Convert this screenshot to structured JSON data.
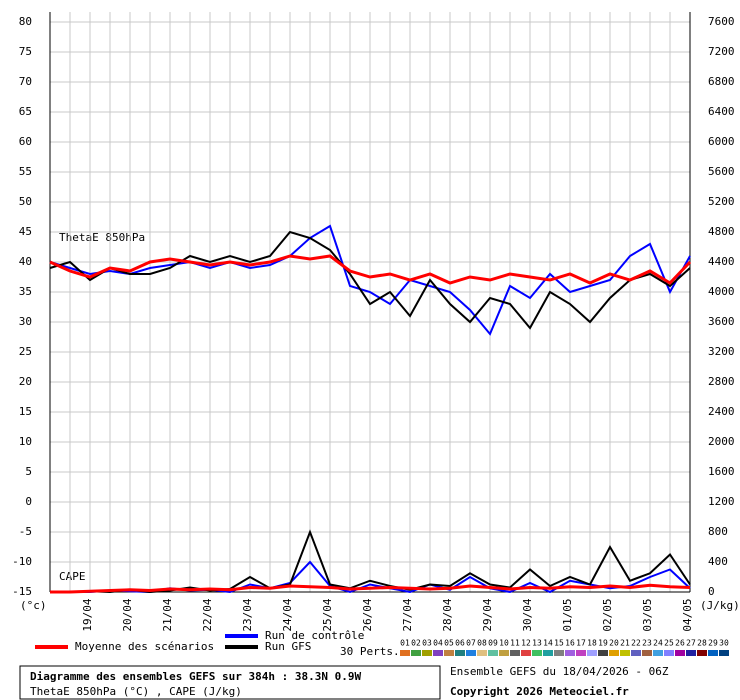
{
  "chart_data": {
    "type": "line",
    "x": [
      0,
      12,
      24,
      36,
      48,
      60,
      72,
      84,
      96,
      108,
      120,
      132,
      144,
      156,
      168,
      180,
      192,
      204,
      216,
      228,
      240,
      252,
      264,
      276,
      288,
      300,
      312,
      324,
      336,
      348,
      360,
      372,
      384
    ],
    "xlim": [
      0,
      384
    ],
    "xticks": [
      {
        "value": 24,
        "label": "19/04"
      },
      {
        "value": 48,
        "label": "20/04"
      },
      {
        "value": 72,
        "label": "21/04"
      },
      {
        "value": 96,
        "label": "22/04"
      },
      {
        "value": 120,
        "label": "23/04"
      },
      {
        "value": 144,
        "label": "24/04"
      },
      {
        "value": 168,
        "label": "25/04"
      },
      {
        "value": 192,
        "label": "26/04"
      },
      {
        "value": 216,
        "label": "27/04"
      },
      {
        "value": 240,
        "label": "28/04"
      },
      {
        "value": 264,
        "label": "29/04"
      },
      {
        "value": 288,
        "label": "30/04"
      },
      {
        "value": 312,
        "label": "01/05"
      },
      {
        "value": 336,
        "label": "02/05"
      },
      {
        "value": 360,
        "label": "03/05"
      },
      {
        "value": 384,
        "label": "04/05"
      }
    ],
    "xminor": [
      12,
      36,
      60,
      84,
      108,
      132,
      156,
      180,
      204,
      228,
      252,
      276,
      300,
      324,
      348,
      372
    ],
    "ylim": [
      -15,
      80
    ],
    "yticks": [
      -15,
      -10,
      -5,
      0,
      5,
      10,
      15,
      20,
      25,
      30,
      35,
      40,
      45,
      50,
      55,
      60,
      65,
      70,
      75,
      80
    ],
    "y2lim": [
      0,
      7600
    ],
    "y2ticks": [
      0,
      400,
      800,
      1200,
      1600,
      2000,
      2400,
      2800,
      3200,
      3600,
      4000,
      4400,
      4800,
      5200,
      5600,
      6000,
      6400,
      6800,
      7200,
      7600
    ],
    "y_unit": "(°c)",
    "y2_unit": "(J/kg)",
    "grid": true,
    "annotations": [
      "ThetaE 850hPa",
      "CAPE"
    ],
    "series": [
      {
        "name": "Run de contrôle",
        "color": "#0000ff",
        "values": [
          40,
          39,
          38,
          38.5,
          38,
          39,
          39.5,
          40,
          39,
          40,
          39,
          39.5,
          41,
          44,
          46,
          36,
          35,
          33,
          37,
          36,
          35,
          32,
          28,
          36,
          34,
          38,
          35,
          36,
          37,
          41,
          43,
          35,
          41
        ]
      },
      {
        "name": "Run GFS",
        "color": "#000000",
        "values": [
          39,
          40,
          37,
          39,
          38,
          38,
          39,
          41,
          40,
          41,
          40,
          41,
          45,
          44,
          42,
          38,
          33,
          35,
          31,
          37,
          33,
          30,
          34,
          33,
          29,
          35,
          33,
          30,
          34,
          37,
          38,
          36,
          39
        ]
      },
      {
        "name": "Moyenne des scénarios",
        "color": "#ff0000",
        "values": [
          40,
          38.5,
          37.5,
          39,
          38.5,
          40,
          40.5,
          40,
          39.5,
          40,
          39.5,
          40,
          41,
          40.5,
          41,
          38.5,
          37.5,
          38,
          37,
          38,
          36.5,
          37.5,
          37,
          38,
          37.5,
          37,
          38,
          36.5,
          38,
          37,
          38.5,
          36.5,
          40
        ]
      }
    ],
    "cape_series": [
      {
        "color": "#0000ff",
        "axis": "y2",
        "values": [
          0,
          0,
          0,
          20,
          10,
          0,
          50,
          20,
          30,
          0,
          100,
          50,
          120,
          400,
          80,
          0,
          100,
          50,
          0,
          100,
          30,
          200,
          50,
          0,
          120,
          0,
          150,
          100,
          50,
          80,
          200,
          300,
          50
        ]
      },
      {
        "color": "#000000",
        "axis": "y2",
        "values": [
          0,
          0,
          10,
          0,
          30,
          0,
          20,
          60,
          20,
          40,
          200,
          50,
          100,
          800,
          100,
          50,
          150,
          80,
          30,
          100,
          80,
          250,
          100,
          60,
          300,
          80,
          200,
          100,
          600,
          150,
          250,
          500,
          100
        ]
      },
      {
        "color": "#ff0000",
        "axis": "y2",
        "values": [
          0,
          0,
          10,
          20,
          30,
          20,
          40,
          30,
          40,
          30,
          60,
          50,
          80,
          70,
          60,
          40,
          50,
          60,
          50,
          40,
          50,
          80,
          60,
          40,
          60,
          50,
          70,
          60,
          80,
          60,
          90,
          70,
          60
        ]
      }
    ],
    "perturbations": {
      "label": "30 Perts.",
      "members": [
        "01",
        "02",
        "03",
        "04",
        "05",
        "06",
        "07",
        "08",
        "09",
        "10",
        "11",
        "12",
        "13",
        "14",
        "15",
        "16",
        "17",
        "18",
        "19",
        "20",
        "21",
        "22",
        "23",
        "24",
        "25",
        "26",
        "27",
        "28",
        "29",
        "30"
      ],
      "colors": [
        "#e07020",
        "#40a040",
        "#a0a000",
        "#8040c0",
        "#c08040",
        "#208080",
        "#2080e0",
        "#e0c080",
        "#60c0a0",
        "#c0a040",
        "#606060",
        "#e04040",
        "#40c060",
        "#20a0a0",
        "#808080",
        "#a060e0",
        "#c040c0",
        "#a0a0ff",
        "#404040",
        "#e0a000",
        "#c0c000",
        "#6060c0",
        "#a06040",
        "#40a0e0",
        "#8080ff",
        "#a000a0",
        "#2020a0",
        "#800000",
        "#0060c0",
        "#004080"
      ]
    }
  },
  "footer": {
    "title": "Diagramme des ensembles GEFS sur 384h : 38.3N 0.9W",
    "subtitle": "ThetaE 850hPa (°C) , CAPE (J/kg)",
    "run": "Ensemble GEFS du 18/04/2026 - 06Z",
    "copyright": "Copyright 2026 Meteociel.fr"
  }
}
